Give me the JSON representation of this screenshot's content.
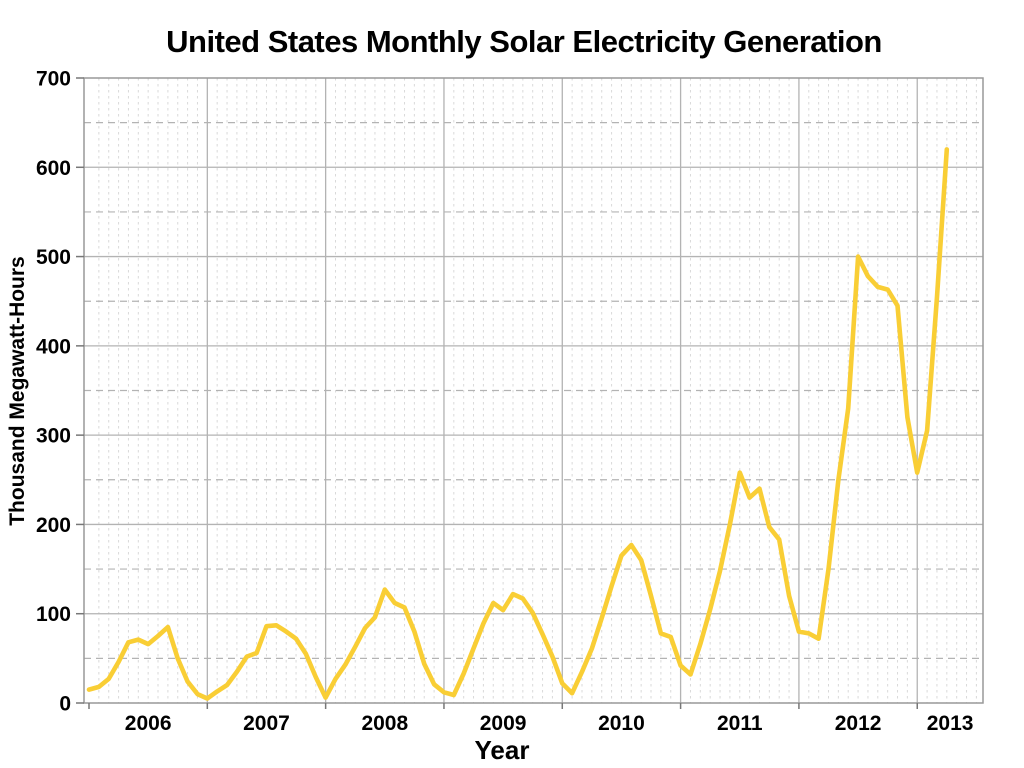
{
  "title": "United States Monthly Solar Electricity Generation",
  "x_axis": {
    "label": "Year",
    "tick_labels": [
      "2006",
      "2007",
      "2008",
      "2009",
      "2010",
      "2011",
      "2012",
      "2013"
    ]
  },
  "y_axis": {
    "label": "Thousand Megawatt-Hours",
    "tick_labels": [
      "0",
      "100",
      "200",
      "300",
      "400",
      "500",
      "600",
      "700"
    ],
    "min": 0,
    "max": 700,
    "major_step": 100,
    "minor_step": 50
  },
  "colors": {
    "line": "#F9CE35",
    "major_grid": "#b3b3b3",
    "minor_grid_y": "#b3b3b3",
    "minor_grid_x": "#d9d9d9",
    "border": "#999999",
    "tick": "#777777",
    "text": "#000000",
    "background": "#ffffff"
  },
  "chart_data": {
    "type": "line",
    "title": "United States Monthly Solar Electricity Generation",
    "xlabel": "Year",
    "ylabel": "Thousand Megawatt-Hours",
    "ylim": [
      0,
      700
    ],
    "x_interval": "month",
    "x_start": "2006-01",
    "x_end": "2013-04",
    "grid": {
      "major": "solid",
      "minor_horizontal": "dashed every 50",
      "minor_vertical": "light dashed every month"
    },
    "legend": "none",
    "series": [
      {
        "name": "Monthly solar electricity generation (thousand MWh)",
        "color": "#F9CE35",
        "monthly_by_year": {
          "2006": [
            15,
            18,
            27,
            46,
            68,
            71,
            66,
            75,
            85,
            50,
            24,
            10
          ],
          "2007": [
            5,
            13,
            20,
            35,
            52,
            56,
            86,
            87,
            80,
            72,
            55,
            29
          ],
          "2008": [
            6,
            27,
            43,
            63,
            84,
            96,
            127,
            112,
            107,
            80,
            44,
            21
          ],
          "2009": [
            12,
            9,
            33,
            61,
            89,
            112,
            104,
            122,
            117,
            101,
            77,
            52
          ],
          "2010": [
            22,
            11,
            35,
            61,
            95,
            131,
            165,
            177,
            160,
            120,
            78,
            74
          ],
          "2011": [
            42,
            32,
            66,
            105,
            148,
            200,
            258,
            230,
            240,
            197,
            183,
            120
          ],
          "2012": [
            80,
            78,
            72,
            150,
            250,
            330,
            500,
            478,
            466,
            463,
            445,
            320
          ],
          "2013": [
            258,
            305,
            455,
            620
          ]
        }
      }
    ]
  }
}
